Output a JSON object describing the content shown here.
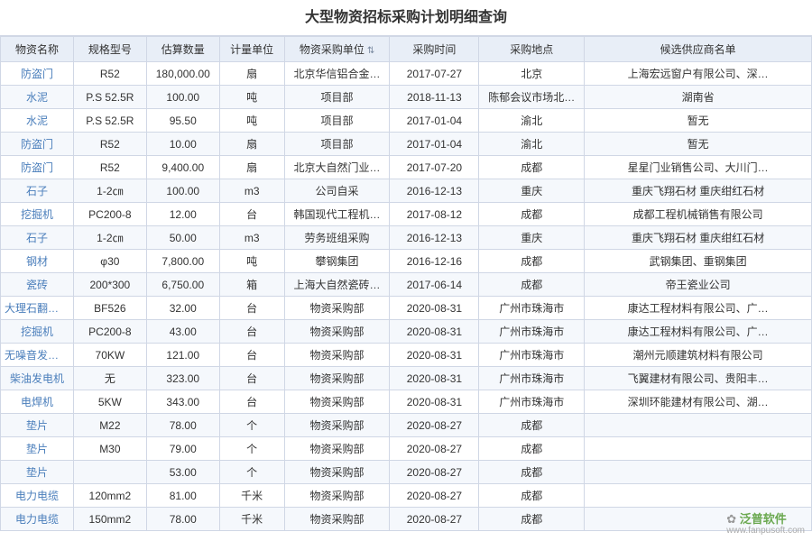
{
  "title": "大型物资招标采购计划明细查询",
  "columns": [
    {
      "label": "物资名称",
      "width": "9%"
    },
    {
      "label": "规格型号",
      "width": "9%"
    },
    {
      "label": "估算数量",
      "width": "9%"
    },
    {
      "label": "计量单位",
      "width": "8%"
    },
    {
      "label": "物资采购单位",
      "width": "13%",
      "sort": true
    },
    {
      "label": "采购时间",
      "width": "11%"
    },
    {
      "label": "采购地点",
      "width": "13%"
    },
    {
      "label": "候选供应商名单",
      "width": "28%"
    }
  ],
  "rows": [
    [
      "防盗门",
      "R52",
      "180,000.00",
      "扇",
      "北京华信铝合金…",
      "2017-07-27",
      "北京",
      "上海宏远窗户有限公司、深…"
    ],
    [
      "水泥",
      "P.S 52.5R",
      "100.00",
      "吨",
      "项目部",
      "2018-11-13",
      "陈郁会议市场北…",
      "湖南省"
    ],
    [
      "水泥",
      "P.S 52.5R",
      "95.50",
      "吨",
      "项目部",
      "2017-01-04",
      "渝北",
      "暂无"
    ],
    [
      "防盗门",
      "R52",
      "10.00",
      "扇",
      "项目部",
      "2017-01-04",
      "渝北",
      "暂无"
    ],
    [
      "防盗门",
      "R52",
      "9,400.00",
      "扇",
      "北京大自然门业…",
      "2017-07-20",
      "成都",
      "星星门业销售公司、大川门…"
    ],
    [
      "石子",
      "1-2㎝",
      "100.00",
      "m3",
      "公司自采",
      "2016-12-13",
      "重庆",
      "重庆飞翔石材 重庆绀红石材"
    ],
    [
      "挖掘机",
      "PC200-8",
      "12.00",
      "台",
      "韩国现代工程机…",
      "2017-08-12",
      "成都",
      "成都工程机械销售有限公司"
    ],
    [
      "石子",
      "1-2㎝",
      "50.00",
      "m3",
      "劳务班组采购",
      "2016-12-13",
      "重庆",
      "重庆飞翔石材 重庆绀红石材"
    ],
    [
      "钢材",
      "φ30",
      "7,800.00",
      "吨",
      "攀钢集团",
      "2016-12-16",
      "成都",
      "武钢集团、重钢集团"
    ],
    [
      "瓷砖",
      "200*300",
      "6,750.00",
      "箱",
      "上海大自然瓷砖…",
      "2017-06-14",
      "成都",
      "帝王瓷业公司"
    ],
    [
      "大理石翻新机",
      "BF526",
      "32.00",
      "台",
      "物资采购部",
      "2020-08-31",
      "广州市珠海市",
      "康达工程材料有限公司、广…"
    ],
    [
      "挖掘机",
      "PC200-8",
      "43.00",
      "台",
      "物资采购部",
      "2020-08-31",
      "广州市珠海市",
      "康达工程材料有限公司、广…"
    ],
    [
      "无噪音发电机",
      "70KW",
      "121.00",
      "台",
      "物资采购部",
      "2020-08-31",
      "广州市珠海市",
      "潮州元顺建筑材料有限公司"
    ],
    [
      "柴油发电机",
      "无",
      "323.00",
      "台",
      "物资采购部",
      "2020-08-31",
      "广州市珠海市",
      "飞翼建材有限公司、贵阳丰…"
    ],
    [
      "电焊机",
      "5KW",
      "343.00",
      "台",
      "物资采购部",
      "2020-08-31",
      "广州市珠海市",
      "深圳环能建材有限公司、湖…"
    ],
    [
      "垫片",
      "M22",
      "78.00",
      "个",
      "物资采购部",
      "2020-08-27",
      "成都",
      ""
    ],
    [
      "垫片",
      "M30",
      "79.00",
      "个",
      "物资采购部",
      "2020-08-27",
      "成都",
      ""
    ],
    [
      "垫片",
      "",
      "53.00",
      "个",
      "物资采购部",
      "2020-08-27",
      "成都",
      ""
    ],
    [
      "电力电缆",
      "120mm2",
      "81.00",
      "千米",
      "物资采购部",
      "2020-08-27",
      "成都",
      ""
    ],
    [
      "电力电缆",
      "150mm2",
      "78.00",
      "千米",
      "物资采购部",
      "2020-08-27",
      "成都",
      ""
    ]
  ],
  "link_columns": [
    0
  ],
  "watermark": {
    "brand": "泛普软件",
    "url": "www.fanpusoft.com"
  },
  "colors": {
    "header_bg": "#e8eef7",
    "border": "#d0d7e5",
    "row_alt": "#f5f8fc",
    "link": "#4a7ebb"
  }
}
